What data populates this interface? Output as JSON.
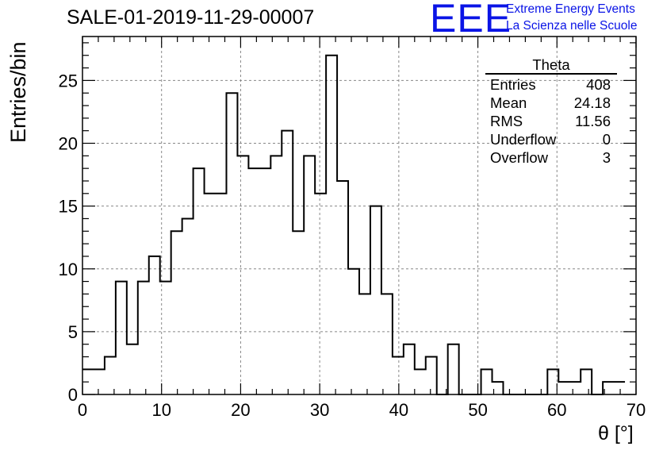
{
  "header": {
    "title": "SALE-01-2019-11-29-00007",
    "logo_text": "EEE",
    "logo_line1": "Extreme Energy Events",
    "logo_line2": "La Scienza nelle Scuole"
  },
  "stats_box": {
    "name": "Theta",
    "rows": [
      {
        "label": "Entries",
        "value": "408"
      },
      {
        "label": "Mean",
        "value": "24.18"
      },
      {
        "label": "RMS",
        "value": "11.56"
      },
      {
        "label": "Underflow",
        "value": "0"
      },
      {
        "label": "Overflow",
        "value": "3"
      }
    ]
  },
  "colors": {
    "line": "#000000",
    "grid": "#888888",
    "logo": "#0a14e6"
  },
  "chart_data": {
    "type": "bar",
    "style": "step-histogram",
    "title": "SALE-01-2019-11-29-00007",
    "xlabel": "θ [°]",
    "ylabel": "Entries/bin",
    "xlim": [
      0,
      70
    ],
    "ylim": [
      0,
      28.5
    ],
    "grid": true,
    "bin_width": 1.4,
    "bin_edges_start": 0,
    "values": [
      2,
      2,
      3,
      9,
      4,
      9,
      11,
      9,
      13,
      14,
      18,
      16,
      16,
      24,
      19,
      18,
      18,
      19,
      21,
      13,
      19,
      16,
      27,
      17,
      10,
      8,
      15,
      8,
      3,
      4,
      2,
      3,
      0,
      4,
      0,
      0,
      2,
      1,
      0,
      0,
      0,
      0,
      2,
      1,
      1,
      2,
      0,
      1,
      1
    ],
    "x_ticks": [
      0,
      10,
      20,
      30,
      40,
      50,
      60,
      70
    ],
    "y_ticks": [
      0,
      5,
      10,
      15,
      20,
      25
    ]
  }
}
